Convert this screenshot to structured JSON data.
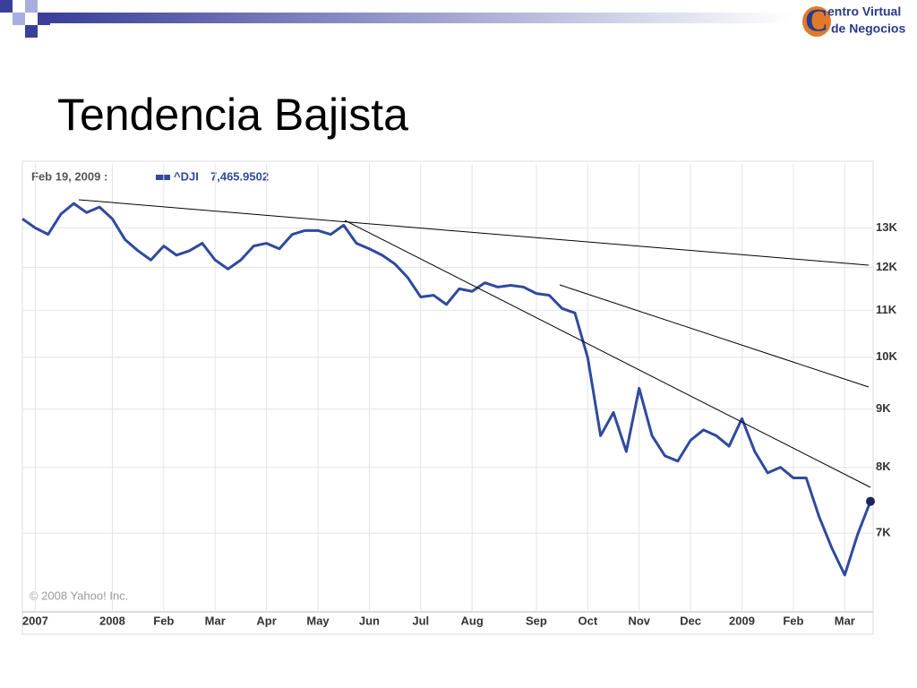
{
  "logo": {
    "initial": "C",
    "line1": "entro Virtual",
    "line2": "de Negocios"
  },
  "slide_title": "Tendencia Bajista",
  "chart_data": {
    "type": "line",
    "date_label": "Feb 19, 2009 :",
    "copyright": "© 2008 Yahoo! Inc.",
    "categories": [
      null,
      "2007",
      null,
      null,
      null,
      null,
      null,
      "2008",
      null,
      null,
      null,
      "Feb",
      null,
      null,
      null,
      "Mar",
      null,
      null,
      null,
      "Apr",
      null,
      null,
      null,
      "May",
      null,
      null,
      null,
      "Jun",
      null,
      null,
      null,
      "Jul",
      null,
      null,
      null,
      "Aug",
      null,
      null,
      null,
      null,
      "Sep",
      null,
      null,
      null,
      "Oct",
      null,
      null,
      null,
      "Nov",
      null,
      null,
      null,
      "Dec",
      null,
      null,
      null,
      "2009",
      null,
      null,
      null,
      "Feb",
      null,
      null,
      null,
      "Mar",
      null,
      null
    ],
    "series": [
      {
        "name": "^DJI",
        "color": "#2f4a9e",
        "values": [
          13240,
          13000,
          12830,
          13370,
          13660,
          13410,
          13560,
          13240,
          12690,
          12410,
          12180,
          12530,
          12300,
          12410,
          12600,
          12180,
          11960,
          12180,
          12530,
          12600,
          12460,
          12830,
          12930,
          12930,
          12830,
          13070,
          12600,
          12460,
          12300,
          12080,
          11750,
          11300,
          11340,
          11130,
          11490,
          11430,
          11630,
          11530,
          11570,
          11530,
          11380,
          11340,
          11040,
          10940,
          9990,
          8530,
          8940,
          8260,
          9390,
          8530,
          8190,
          8100,
          8450,
          8630,
          8530,
          8350,
          8830,
          8260,
          7910,
          8000,
          7830,
          7830,
          7240,
          6790,
          6430,
          6980,
          7465.9502
        ],
        "value_labels": [
          null,
          null,
          null,
          null,
          null,
          null,
          null,
          null,
          null,
          null,
          null,
          null,
          null,
          null,
          null,
          null,
          null,
          null,
          null,
          null,
          null,
          null,
          null,
          null,
          null,
          null,
          null,
          null,
          null,
          null,
          null,
          null,
          null,
          null,
          null,
          null,
          null,
          null,
          null,
          null,
          null,
          null,
          null,
          null,
          null,
          null,
          null,
          null,
          null,
          null,
          null,
          null,
          null,
          null,
          null,
          null,
          null,
          null,
          null,
          null,
          null,
          null,
          null,
          null,
          null,
          null,
          "7,465.9502"
        ]
      }
    ],
    "ylim": [
      6000,
      14800
    ],
    "log_scale": true,
    "yticks": [
      {
        "value": 7000,
        "label": "7K"
      },
      {
        "value": 8000,
        "label": "8K"
      },
      {
        "value": 9000,
        "label": "9K"
      },
      {
        "value": 10000,
        "label": "10K"
      },
      {
        "value": 11000,
        "label": "11K"
      },
      {
        "value": 12000,
        "label": "12K"
      },
      {
        "value": 13000,
        "label": "13K"
      }
    ],
    "grid": true
  }
}
